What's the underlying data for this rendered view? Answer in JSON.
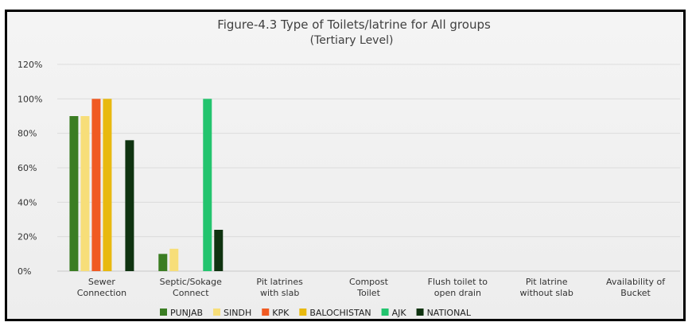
{
  "chart_data": {
    "type": "bar",
    "title": "Figure-4.3 Type of Toilets/latrine for All groups",
    "subtitle": "(Tertiary Level)",
    "xlabel": "",
    "ylabel": "",
    "ylim": [
      0,
      120
    ],
    "y_ticks": [
      "0%",
      "20%",
      "40%",
      "60%",
      "80%",
      "100%",
      "120%"
    ],
    "grid": true,
    "legend_position": "bottom",
    "categories": [
      [
        "Sewer",
        "Connection"
      ],
      [
        "Septic/Sokage",
        "Connect"
      ],
      [
        "Pit latrines",
        "with slab"
      ],
      [
        "Compost",
        "Toilet"
      ],
      [
        "Flush toilet to",
        "open drain"
      ],
      [
        "Pit latrine",
        "without slab"
      ],
      [
        "Availability of",
        "Bucket"
      ]
    ],
    "series": [
      {
        "name": "PUNJAB",
        "color": "#3b7d23",
        "values": [
          90,
          10,
          0,
          0,
          0,
          0,
          0
        ]
      },
      {
        "name": "SINDH",
        "color": "#f7de79",
        "values": [
          90,
          13,
          0,
          0,
          0,
          0,
          0
        ]
      },
      {
        "name": "KPK",
        "color": "#f05a22",
        "values": [
          100,
          0,
          0,
          0,
          0,
          0,
          0
        ]
      },
      {
        "name": "BALOCHISTAN",
        "color": "#e8b90f",
        "values": [
          100,
          0,
          0,
          0,
          0,
          0,
          0
        ]
      },
      {
        "name": "AJK",
        "color": "#23c46e",
        "values": [
          0,
          100,
          0,
          0,
          0,
          0,
          0
        ]
      },
      {
        "name": "NATIONAL",
        "color": "#0f3310",
        "values": [
          76,
          24,
          0,
          0,
          0,
          0,
          0
        ]
      }
    ]
  }
}
